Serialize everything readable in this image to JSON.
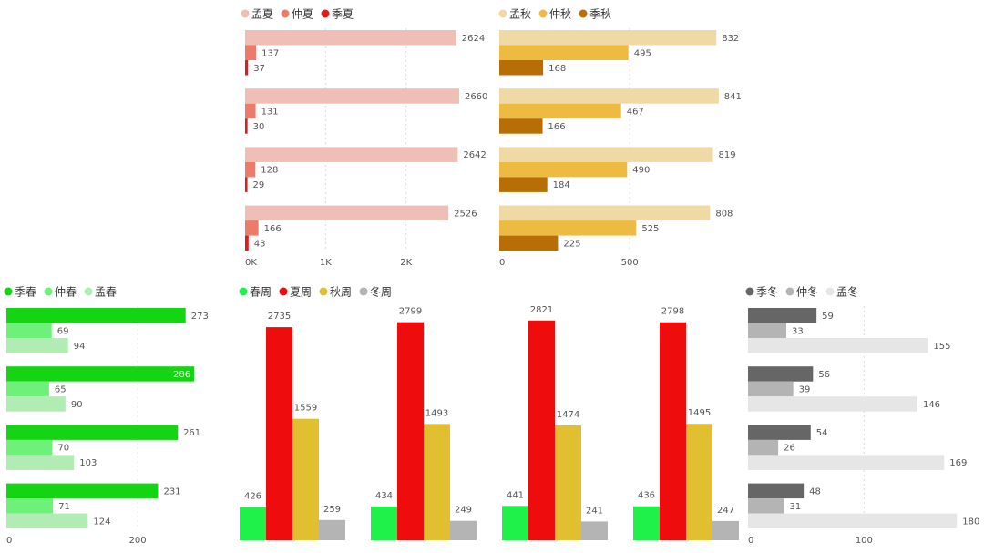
{
  "colors": {
    "summer": [
      "#efbeb4",
      "#ed7b6c",
      "#e01b1b"
    ],
    "autumn": [
      "#efd9a4",
      "#eebb42",
      "#b86e06"
    ],
    "spring": [
      "#14d414",
      "#6ff07a",
      "#b0ecb4"
    ],
    "winter": [
      "#666666",
      "#b4b4b4",
      "#e6e6e6"
    ],
    "weeks": [
      "#1ff04a",
      "#ee0c0c",
      "#e0c030",
      "#b4b4b4"
    ],
    "inside_label": "#ffffff"
  },
  "chart_data": [
    {
      "id": "summer",
      "type": "bar",
      "orientation": "horizontal",
      "legend": [
        "孟夏",
        "仲夏",
        "季夏"
      ],
      "groups": 4,
      "series": [
        {
          "name": "孟夏",
          "values": [
            2624,
            2660,
            2642,
            2526
          ]
        },
        {
          "name": "仲夏",
          "values": [
            137,
            131,
            128,
            166
          ]
        },
        {
          "name": "季夏",
          "values": [
            37,
            30,
            29,
            43
          ]
        }
      ],
      "xlim": [
        0,
        3000
      ],
      "ticks": [
        0,
        1000,
        2000
      ],
      "tick_labels": [
        "0K",
        "1K",
        "2K"
      ]
    },
    {
      "id": "autumn",
      "type": "bar",
      "orientation": "horizontal",
      "legend": [
        "孟秋",
        "仲秋",
        "季秋"
      ],
      "groups": 4,
      "series": [
        {
          "name": "孟秋",
          "values": [
            832,
            841,
            819,
            808
          ]
        },
        {
          "name": "仲秋",
          "values": [
            495,
            467,
            490,
            525
          ]
        },
        {
          "name": "季秋",
          "values": [
            168,
            166,
            184,
            225
          ]
        }
      ],
      "xlim": [
        0,
        950
      ],
      "ticks": [
        0,
        500
      ],
      "tick_labels": [
        "0",
        "500"
      ]
    },
    {
      "id": "spring",
      "type": "bar",
      "orientation": "horizontal",
      "legend": [
        "季春",
        "仲春",
        "孟春"
      ],
      "groups": 4,
      "series": [
        {
          "name": "季春",
          "values": [
            273,
            286,
            261,
            231
          ]
        },
        {
          "name": "仲春",
          "values": [
            69,
            65,
            70,
            71
          ]
        },
        {
          "name": "孟春",
          "values": [
            94,
            90,
            103,
            124
          ]
        }
      ],
      "xlim": [
        0,
        340
      ],
      "ticks": [
        0,
        200
      ],
      "tick_labels": [
        "0",
        "200"
      ],
      "inside_labels": [
        [
          false,
          true,
          false,
          false
        ],
        [
          false,
          false,
          false,
          false
        ],
        [
          false,
          false,
          false,
          false
        ]
      ]
    },
    {
      "id": "weeks",
      "type": "bar",
      "orientation": "vertical",
      "legend": [
        "春周",
        "夏周",
        "秋周",
        "冬周"
      ],
      "groups": 4,
      "series": [
        {
          "name": "春周",
          "values": [
            426,
            434,
            441,
            436
          ]
        },
        {
          "name": "夏周",
          "values": [
            2735,
            2799,
            2821,
            2798
          ]
        },
        {
          "name": "秋周",
          "values": [
            1559,
            1493,
            1474,
            1495
          ]
        },
        {
          "name": "冬周",
          "values": [
            259,
            249,
            241,
            247
          ]
        }
      ],
      "ylim": [
        0,
        2900
      ]
    },
    {
      "id": "winter",
      "type": "bar",
      "orientation": "horizontal",
      "legend": [
        "季冬",
        "仲冬",
        "孟冬"
      ],
      "groups": 4,
      "series": [
        {
          "name": "季冬",
          "values": [
            59,
            56,
            54,
            48
          ]
        },
        {
          "name": "仲冬",
          "values": [
            33,
            39,
            26,
            31
          ]
        },
        {
          "name": "孟冬",
          "values": [
            155,
            146,
            169,
            180
          ]
        }
      ],
      "xlim": [
        0,
        190
      ],
      "ticks": [
        0,
        100
      ],
      "tick_labels": [
        "0",
        "100"
      ]
    }
  ]
}
